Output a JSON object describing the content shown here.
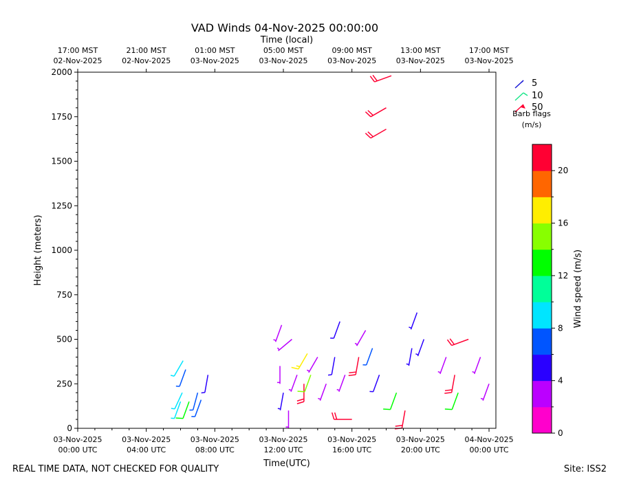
{
  "chart_data": {
    "type": "scatter",
    "title": "VAD Winds 04-Nov-2025 00:00:00",
    "top_axis_label": "Time (local)",
    "xlabel": "Time(UTC)",
    "ylabel": "Height (meters)",
    "ylim": [
      0,
      2000
    ],
    "xlim_hours_utc": [
      0,
      24.4
    ],
    "y_ticks": [
      "0",
      "250",
      "500",
      "750",
      "1000",
      "1250",
      "1500",
      "1750",
      "2000"
    ],
    "x_ticks_utc": [
      {
        "l1": "03-Nov-2025",
        "l2": "00:00 UTC",
        "h": 0
      },
      {
        "l1": "03-Nov-2025",
        "l2": "04:00 UTC",
        "h": 4
      },
      {
        "l1": "03-Nov-2025",
        "l2": "08:00 UTC",
        "h": 8
      },
      {
        "l1": "03-Nov-2025",
        "l2": "12:00 UTC",
        "h": 12
      },
      {
        "l1": "03-Nov-2025",
        "l2": "16:00 UTC",
        "h": 16
      },
      {
        "l1": "03-Nov-2025",
        "l2": "20:00 UTC",
        "h": 20
      },
      {
        "l1": "04-Nov-2025",
        "l2": "00:00 UTC",
        "h": 24
      }
    ],
    "x_ticks_local": [
      {
        "l1": "17:00 MST",
        "l2": "02-Nov-2025",
        "h": 0
      },
      {
        "l1": "21:00 MST",
        "l2": "02-Nov-2025",
        "h": 4
      },
      {
        "l1": "01:00 MST",
        "l2": "03-Nov-2025",
        "h": 8
      },
      {
        "l1": "05:00 MST",
        "l2": "03-Nov-2025",
        "h": 12
      },
      {
        "l1": "09:00 MST",
        "l2": "03-Nov-2025",
        "h": 16
      },
      {
        "l1": "13:00 MST",
        "l2": "03-Nov-2025",
        "h": 20
      },
      {
        "l1": "17:00 MST",
        "l2": "03-Nov-2025",
        "h": 24
      }
    ],
    "legend": {
      "title_line1": "Barb flags",
      "title_line2": "(m/s)",
      "entries": [
        {
          "label": "5",
          "color": "#1a1ad6"
        },
        {
          "label": "10",
          "color": "#1ae68a"
        },
        {
          "label": "50",
          "color": "#ff0033"
        }
      ]
    },
    "colorbar": {
      "label": "Wind speed (m/s)",
      "range": [
        0,
        22
      ],
      "ticks": [
        "0",
        "4",
        "8",
        "12",
        "16",
        "20"
      ],
      "colors": [
        "#ff00cc",
        "#bb00ff",
        "#2a00ff",
        "#0055ff",
        "#00e5ff",
        "#00ff99",
        "#00ff00",
        "#88ff00",
        "#ffee00",
        "#ff6600",
        "#ff0033"
      ]
    },
    "barbs": [
      {
        "h": 6.0,
        "y": 150,
        "s": 8.5,
        "d": 200
      },
      {
        "h": 6.1,
        "y": 200,
        "s": 8.5,
        "d": 205
      },
      {
        "h": 6.15,
        "y": 380,
        "s": 8.5,
        "d": 210
      },
      {
        "h": 6.3,
        "y": 330,
        "s": 6.0,
        "d": 200
      },
      {
        "h": 6.5,
        "y": 150,
        "s": 13.5,
        "d": 200
      },
      {
        "h": 7.0,
        "y": 200,
        "s": 7.5,
        "d": 195
      },
      {
        "h": 7.2,
        "y": 160,
        "s": 6.5,
        "d": 200
      },
      {
        "h": 7.6,
        "y": 300,
        "s": 5.0,
        "d": 190
      },
      {
        "h": 11.8,
        "y": 350,
        "s": 2.5,
        "d": 180
      },
      {
        "h": 11.9,
        "y": 580,
        "s": 2.5,
        "d": 200
      },
      {
        "h": 12.0,
        "y": 200,
        "s": 4.5,
        "d": 190
      },
      {
        "h": 12.3,
        "y": 100,
        "s": 2.5,
        "d": 180
      },
      {
        "h": 12.5,
        "y": 500,
        "s": 2.5,
        "d": 230
      },
      {
        "h": 12.8,
        "y": 300,
        "s": 2.5,
        "d": 200
      },
      {
        "h": 13.2,
        "y": 250,
        "s": 21.0,
        "d": 180
      },
      {
        "h": 13.4,
        "y": 420,
        "s": 17.0,
        "d": 210
      },
      {
        "h": 13.6,
        "y": 300,
        "s": 14.0,
        "d": 200
      },
      {
        "h": 14.0,
        "y": 400,
        "s": 2.5,
        "d": 210
      },
      {
        "h": 14.5,
        "y": 250,
        "s": 2.5,
        "d": 200
      },
      {
        "h": 15.0,
        "y": 400,
        "s": 5.0,
        "d": 190
      },
      {
        "h": 15.3,
        "y": 600,
        "s": 5.0,
        "d": 200
      },
      {
        "h": 15.6,
        "y": 300,
        "s": 2.5,
        "d": 200
      },
      {
        "h": 16.0,
        "y": 50,
        "s": 21.5,
        "d": 270
      },
      {
        "h": 16.4,
        "y": 400,
        "s": 21.5,
        "d": 190
      },
      {
        "h": 16.8,
        "y": 550,
        "s": 3.0,
        "d": 210
      },
      {
        "h": 17.2,
        "y": 450,
        "s": 6.0,
        "d": 200
      },
      {
        "h": 17.6,
        "y": 300,
        "s": 5.0,
        "d": 200
      },
      {
        "h": 18.3,
        "y": 1980,
        "s": 21.5,
        "d": 250
      },
      {
        "h": 18.0,
        "y": 1800,
        "s": 21.5,
        "d": 240
      },
      {
        "h": 18.0,
        "y": 1680,
        "s": 21.5,
        "d": 240
      },
      {
        "h": 18.6,
        "y": 200,
        "s": 13.5,
        "d": 200
      },
      {
        "h": 19.1,
        "y": 100,
        "s": 21.0,
        "d": 190
      },
      {
        "h": 19.5,
        "y": 450,
        "s": 4.0,
        "d": 190
      },
      {
        "h": 19.8,
        "y": 650,
        "s": 4.5,
        "d": 200
      },
      {
        "h": 20.2,
        "y": 500,
        "s": 4.5,
        "d": 200
      },
      {
        "h": 21.5,
        "y": 400,
        "s": 3.0,
        "d": 200
      },
      {
        "h": 22.0,
        "y": 300,
        "s": 21.0,
        "d": 190
      },
      {
        "h": 22.2,
        "y": 200,
        "s": 13.0,
        "d": 200
      },
      {
        "h": 22.8,
        "y": 500,
        "s": 21.5,
        "d": 250
      },
      {
        "h": 23.5,
        "y": 400,
        "s": 3.0,
        "d": 200
      },
      {
        "h": 24.0,
        "y": 250,
        "s": 3.0,
        "d": 200
      }
    ]
  },
  "footer": {
    "left": "REAL TIME DATA, NOT CHECKED FOR QUALITY",
    "right": "Site: ISS2"
  }
}
